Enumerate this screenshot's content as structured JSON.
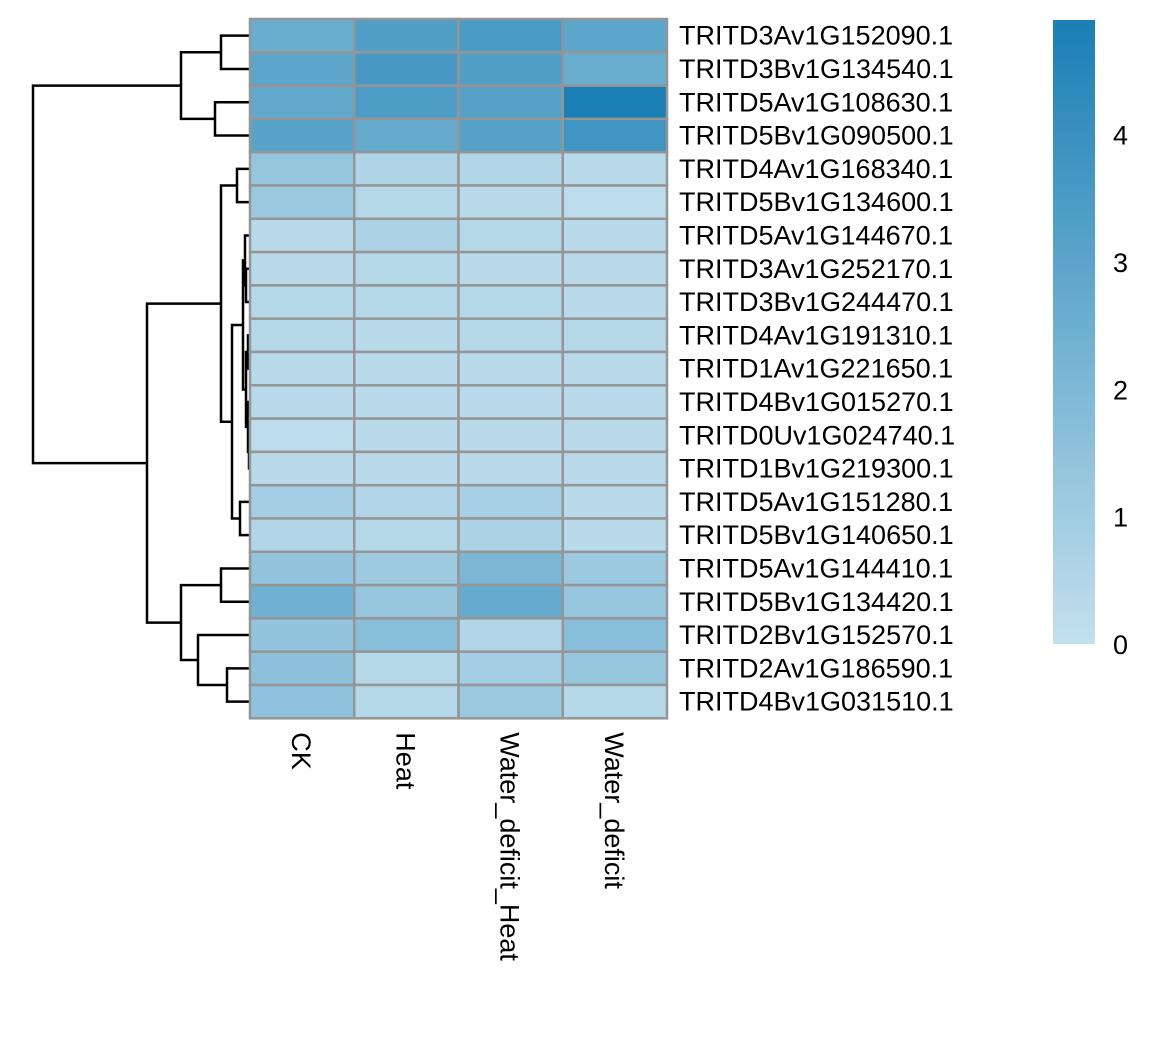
{
  "chart_data": {
    "type": "heatmap",
    "title": "",
    "xlabel": "",
    "ylabel": "",
    "columns": [
      "CK",
      "Heat",
      "Water_deficit_Heat",
      "Water_deficit"
    ],
    "rows": [
      "TRITD3Av1G152090.1",
      "TRITD3Bv1G134540.1",
      "TRITD5Av1G108630.1",
      "TRITD5Bv1G090500.1",
      "TRITD4Av1G168340.1",
      "TRITD5Bv1G134600.1",
      "TRITD5Av1G144670.1",
      "TRITD3Av1G252170.1",
      "TRITD3Bv1G244470.1",
      "TRITD4Av1G191310.1",
      "TRITD1Av1G221650.1",
      "TRITD4Bv1G015270.1",
      "TRITD0Uv1G024740.1",
      "TRITD1Bv1G219300.1",
      "TRITD5Av1G151280.1",
      "TRITD5Bv1G140650.1",
      "TRITD5Av1G144410.1",
      "TRITD5Bv1G134420.1",
      "TRITD2Bv1G152570.1",
      "TRITD2Av1G186590.1",
      "TRITD4Bv1G031510.1"
    ],
    "values": [
      [
        2.6,
        3.3,
        3.5,
        3.0
      ],
      [
        3.0,
        3.6,
        3.3,
        2.6
      ],
      [
        2.8,
        3.4,
        3.2,
        4.9
      ],
      [
        3.1,
        2.7,
        3.2,
        3.8
      ],
      [
        1.3,
        0.6,
        0.5,
        0.3
      ],
      [
        1.2,
        0.4,
        0.3,
        0.2
      ],
      [
        0.3,
        0.7,
        0.4,
        0.3
      ],
      [
        0.3,
        0.4,
        0.3,
        0.3
      ],
      [
        0.4,
        0.4,
        0.4,
        0.3
      ],
      [
        0.4,
        0.3,
        0.4,
        0.4
      ],
      [
        0.3,
        0.3,
        0.3,
        0.3
      ],
      [
        0.3,
        0.3,
        0.3,
        0.3
      ],
      [
        0.2,
        0.3,
        0.3,
        0.3
      ],
      [
        0.3,
        0.3,
        0.3,
        0.3
      ],
      [
        0.9,
        0.5,
        0.8,
        0.3
      ],
      [
        0.5,
        0.4,
        0.7,
        0.3
      ],
      [
        1.4,
        1.1,
        2.1,
        1.2
      ],
      [
        2.4,
        1.3,
        2.7,
        1.3
      ],
      [
        1.4,
        1.7,
        0.5,
        1.7
      ],
      [
        1.6,
        0.4,
        0.9,
        1.3
      ],
      [
        1.5,
        0.4,
        1.2,
        0.4
      ]
    ],
    "color_scale": {
      "min": 0,
      "max": 4.9,
      "low_color": "#c3e0ed",
      "high_color": "#1a7fb5",
      "ticks": [
        0,
        1,
        2,
        3,
        4
      ]
    },
    "row_dendrogram": true,
    "column_dendrogram": false,
    "grid": true,
    "legend_position": "right"
  }
}
